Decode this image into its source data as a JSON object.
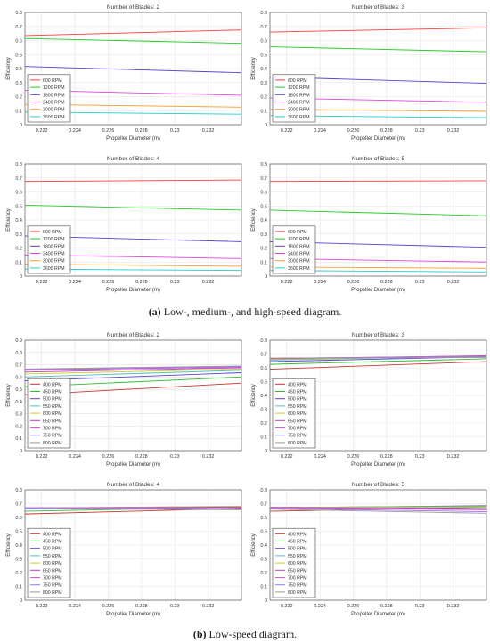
{
  "captions": {
    "a_tag": "(a)",
    "a_text": " Low-, medium-, and high-speed diagram.",
    "b_tag": "(b)",
    "b_text": " Low-speed diagram."
  },
  "chart_data": [
    {
      "type": "line",
      "title": "Number of Blades: 2",
      "xlabel": "Propeller Diameter (m)",
      "ylabel": "Efficiency",
      "xlim": [
        0.221,
        0.234
      ],
      "ylim": [
        0,
        0.8
      ],
      "xticks": [
        "0.222",
        "0.224",
        "0.226",
        "0.228",
        "0.23",
        "0.232"
      ],
      "yticks": [
        "0",
        "0.1",
        "0.2",
        "0.3",
        "0.4",
        "0.5",
        "0.6",
        "0.7",
        "0.8"
      ],
      "grid": true,
      "legend": "bottom-left",
      "x": [
        0.221,
        0.234
      ],
      "series": [
        {
          "name": "600 RPM",
          "color": "#ff3b3b",
          "values": [
            0.635,
            0.675
          ]
        },
        {
          "name": "1200 RPM",
          "color": "#22cc22",
          "values": [
            0.615,
            0.58
          ]
        },
        {
          "name": "1800 RPM",
          "color": "#5544cc",
          "values": [
            0.415,
            0.37
          ]
        },
        {
          "name": "2400 RPM",
          "color": "#dd44dd",
          "values": [
            0.245,
            0.21
          ]
        },
        {
          "name": "3000 RPM",
          "color": "#ff9933",
          "values": [
            0.145,
            0.125
          ]
        },
        {
          "name": "3600 RPM",
          "color": "#22cccc",
          "values": [
            0.09,
            0.075
          ]
        }
      ]
    },
    {
      "type": "line",
      "title": "Number of Blades: 3",
      "xlabel": "Propeller Diameter (m)",
      "ylabel": "Efficiency",
      "xlim": [
        0.221,
        0.234
      ],
      "ylim": [
        0,
        0.8
      ],
      "xticks": [
        "0.222",
        "0.224",
        "0.226",
        "0.228",
        "0.23",
        "0.232"
      ],
      "yticks": [
        "0",
        "0.1",
        "0.2",
        "0.3",
        "0.4",
        "0.5",
        "0.6",
        "0.7",
        "0.8"
      ],
      "grid": true,
      "legend": "bottom-left",
      "x": [
        0.221,
        0.234
      ],
      "series": [
        {
          "name": "600 RPM",
          "color": "#ff3b3b",
          "values": [
            0.66,
            0.69
          ]
        },
        {
          "name": "1200 RPM",
          "color": "#22cc22",
          "values": [
            0.555,
            0.52
          ]
        },
        {
          "name": "1800 RPM",
          "color": "#5544cc",
          "values": [
            0.34,
            0.295
          ]
        },
        {
          "name": "2400 RPM",
          "color": "#dd44dd",
          "values": [
            0.19,
            0.16
          ]
        },
        {
          "name": "3000 RPM",
          "color": "#ff9933",
          "values": [
            0.11,
            0.095
          ]
        },
        {
          "name": "3600 RPM",
          "color": "#22cccc",
          "values": [
            0.065,
            0.05
          ]
        }
      ]
    },
    {
      "type": "line",
      "title": "Number of Blades: 4",
      "xlabel": "Propeller Diameter (m)",
      "ylabel": "Efficiency",
      "xlim": [
        0.221,
        0.234
      ],
      "ylim": [
        0,
        0.8
      ],
      "xticks": [
        "0.222",
        "0.224",
        "0.226",
        "0.228",
        "0.23",
        "0.232"
      ],
      "yticks": [
        "0",
        "0.1",
        "0.2",
        "0.3",
        "0.4",
        "0.5",
        "0.6",
        "0.7",
        "0.8"
      ],
      "grid": true,
      "legend": "bottom-left",
      "x": [
        0.221,
        0.234
      ],
      "series": [
        {
          "name": "600 RPM",
          "color": "#ff3b3b",
          "values": [
            0.675,
            0.685
          ]
        },
        {
          "name": "1200 RPM",
          "color": "#22cc22",
          "values": [
            0.505,
            0.47
          ]
        },
        {
          "name": "1800 RPM",
          "color": "#5544cc",
          "values": [
            0.285,
            0.245
          ]
        },
        {
          "name": "2400 RPM",
          "color": "#dd44dd",
          "values": [
            0.15,
            0.125
          ]
        },
        {
          "name": "3000 RPM",
          "color": "#ff9933",
          "values": [
            0.085,
            0.07
          ]
        },
        {
          "name": "3600 RPM",
          "color": "#22cccc",
          "values": [
            0.05,
            0.04
          ]
        }
      ]
    },
    {
      "type": "line",
      "title": "Number of Blades: 5",
      "xlabel": "Propeller Diameter (m)",
      "ylabel": "Efficiency",
      "xlim": [
        0.221,
        0.234
      ],
      "ylim": [
        0,
        0.8
      ],
      "xticks": [
        "0.222",
        "0.224",
        "0.226",
        "0.228",
        "0.23",
        "0.232"
      ],
      "yticks": [
        "0",
        "0.1",
        "0.2",
        "0.3",
        "0.4",
        "0.5",
        "0.6",
        "0.7",
        "0.8"
      ],
      "grid": true,
      "legend": "bottom-left",
      "x": [
        0.221,
        0.234
      ],
      "series": [
        {
          "name": "600 RPM",
          "color": "#ff3b3b",
          "values": [
            0.675,
            0.68
          ]
        },
        {
          "name": "1200 RPM",
          "color": "#22cc22",
          "values": [
            0.47,
            0.43
          ]
        },
        {
          "name": "1800 RPM",
          "color": "#5544cc",
          "values": [
            0.245,
            0.205
          ]
        },
        {
          "name": "2400 RPM",
          "color": "#dd44dd",
          "values": [
            0.125,
            0.1
          ]
        },
        {
          "name": "3000 RPM",
          "color": "#ff9933",
          "values": [
            0.065,
            0.055
          ]
        },
        {
          "name": "3600 RPM",
          "color": "#22cccc",
          "values": [
            0.04,
            0.03
          ]
        }
      ]
    },
    {
      "type": "line",
      "title": "Number of Blades: 2",
      "xlabel": "Propeller Diameter (m)",
      "ylabel": "Efficiency",
      "xlim": [
        0.221,
        0.234
      ],
      "ylim": [
        0,
        0.9
      ],
      "xticks": [
        "0.222",
        "0.224",
        "0.226",
        "0.228",
        "0.23",
        "0.232"
      ],
      "yticks": [
        "0",
        "0.1",
        "0.2",
        "0.3",
        "0.4",
        "0.5",
        "0.6",
        "0.7",
        "0.8",
        "0.9"
      ],
      "grid": true,
      "legend": "bottom-left",
      "x": [
        0.221,
        0.234
      ],
      "series": [
        {
          "name": "400 RPM",
          "color": "#cc3333",
          "values": [
            0.455,
            0.55
          ]
        },
        {
          "name": "450 RPM",
          "color": "#33bb33",
          "values": [
            0.52,
            0.6
          ]
        },
        {
          "name": "500 RPM",
          "color": "#5544cc",
          "values": [
            0.57,
            0.635
          ]
        },
        {
          "name": "550 RPM",
          "color": "#55bbbb",
          "values": [
            0.6,
            0.655
          ]
        },
        {
          "name": "600 RPM",
          "color": "#cccc33",
          "values": [
            0.625,
            0.665
          ]
        },
        {
          "name": "650 RPM",
          "color": "#bb44bb",
          "values": [
            0.64,
            0.675
          ]
        },
        {
          "name": "700 RPM",
          "color": "#dd55dd",
          "values": [
            0.655,
            0.68
          ]
        },
        {
          "name": "750 RPM",
          "color": "#9977ee",
          "values": [
            0.66,
            0.685
          ]
        },
        {
          "name": "800 RPM",
          "color": "#999999",
          "values": [
            0.665,
            0.69
          ]
        }
      ]
    },
    {
      "type": "line",
      "title": "Number of Blades: 3",
      "xlabel": "Propeller Diameter (m)",
      "ylabel": "Efficiency",
      "xlim": [
        0.221,
        0.234
      ],
      "ylim": [
        0,
        0.8
      ],
      "xticks": [
        "0.222",
        "0.224",
        "0.226",
        "0.228",
        "0.23",
        "0.232"
      ],
      "yticks": [
        "0",
        "0.1",
        "0.2",
        "0.3",
        "0.4",
        "0.5",
        "0.6",
        "0.7",
        "0.8"
      ],
      "grid": true,
      "legend": "bottom-left",
      "x": [
        0.221,
        0.234
      ],
      "series": [
        {
          "name": "400 RPM",
          "color": "#cc3333",
          "values": [
            0.59,
            0.645
          ]
        },
        {
          "name": "450 RPM",
          "color": "#33bb33",
          "values": [
            0.625,
            0.665
          ]
        },
        {
          "name": "500 RPM",
          "color": "#5544cc",
          "values": [
            0.645,
            0.68
          ]
        },
        {
          "name": "550 RPM",
          "color": "#55bbbb",
          "values": [
            0.655,
            0.685
          ]
        },
        {
          "name": "600 RPM",
          "color": "#cccc33",
          "values": [
            0.66,
            0.685
          ]
        },
        {
          "name": "650 RPM",
          "color": "#bb44bb",
          "values": [
            0.665,
            0.688
          ]
        },
        {
          "name": "700 RPM",
          "color": "#dd55dd",
          "values": [
            0.668,
            0.685
          ]
        },
        {
          "name": "750 RPM",
          "color": "#9977ee",
          "values": [
            0.67,
            0.68
          ]
        },
        {
          "name": "800 RPM",
          "color": "#999999",
          "values": [
            0.67,
            0.675
          ]
        }
      ]
    },
    {
      "type": "line",
      "title": "Number of Blades: 4",
      "xlabel": "Propeller Diameter (m)",
      "ylabel": "Efficiency",
      "xlim": [
        0.221,
        0.234
      ],
      "ylim": [
        0,
        0.8
      ],
      "xticks": [
        "0.222",
        "0.224",
        "0.226",
        "0.228",
        "0.23",
        "0.232"
      ],
      "yticks": [
        "0",
        "0.1",
        "0.2",
        "0.3",
        "0.4",
        "0.5",
        "0.6",
        "0.7",
        "0.8"
      ],
      "grid": true,
      "legend": "bottom-left",
      "x": [
        0.221,
        0.234
      ],
      "series": [
        {
          "name": "400 RPM",
          "color": "#cc3333",
          "values": [
            0.625,
            0.665
          ]
        },
        {
          "name": "450 RPM",
          "color": "#33bb33",
          "values": [
            0.645,
            0.675
          ]
        },
        {
          "name": "500 RPM",
          "color": "#5544cc",
          "values": [
            0.66,
            0.68
          ]
        },
        {
          "name": "550 RPM",
          "color": "#55bbbb",
          "values": [
            0.665,
            0.682
          ]
        },
        {
          "name": "600 RPM",
          "color": "#cccc33",
          "values": [
            0.668,
            0.68
          ]
        },
        {
          "name": "650 RPM",
          "color": "#bb44bb",
          "values": [
            0.67,
            0.675
          ]
        },
        {
          "name": "700 RPM",
          "color": "#dd55dd",
          "values": [
            0.67,
            0.67
          ]
        },
        {
          "name": "750 RPM",
          "color": "#9977ee",
          "values": [
            0.668,
            0.662
          ]
        },
        {
          "name": "800 RPM",
          "color": "#999999",
          "values": [
            0.665,
            0.655
          ]
        }
      ]
    },
    {
      "type": "line",
      "title": "Number of Blades: 5",
      "xlabel": "Propeller Diameter (m)",
      "ylabel": "Efficiency",
      "xlim": [
        0.221,
        0.234
      ],
      "ylim": [
        0,
        0.8
      ],
      "xticks": [
        "0.222",
        "0.224",
        "0.226",
        "0.228",
        "0.23",
        "0.232"
      ],
      "yticks": [
        "0",
        "0.1",
        "0.2",
        "0.3",
        "0.4",
        "0.5",
        "0.6",
        "0.7",
        "0.8"
      ],
      "grid": true,
      "legend": "bottom-left",
      "x": [
        0.221,
        0.234
      ],
      "series": [
        {
          "name": "400 RPM",
          "color": "#cc3333",
          "values": [
            0.645,
            0.675
          ]
        },
        {
          "name": "450 RPM",
          "color": "#33bb33",
          "values": [
            0.66,
            0.682
          ]
        },
        {
          "name": "500 RPM",
          "color": "#5544cc",
          "values": [
            0.67,
            0.685
          ]
        },
        {
          "name": "550 RPM",
          "color": "#55bbbb",
          "values": [
            0.672,
            0.682
          ]
        },
        {
          "name": "600 RPM",
          "color": "#cccc33",
          "values": [
            0.674,
            0.675
          ]
        },
        {
          "name": "650 RPM",
          "color": "#bb44bb",
          "values": [
            0.673,
            0.665
          ]
        },
        {
          "name": "700 RPM",
          "color": "#dd55dd",
          "values": [
            0.67,
            0.655
          ]
        },
        {
          "name": "750 RPM",
          "color": "#9977ee",
          "values": [
            0.665,
            0.642
          ]
        },
        {
          "name": "800 RPM",
          "color": "#999999",
          "values": [
            0.66,
            0.63
          ]
        }
      ]
    }
  ]
}
